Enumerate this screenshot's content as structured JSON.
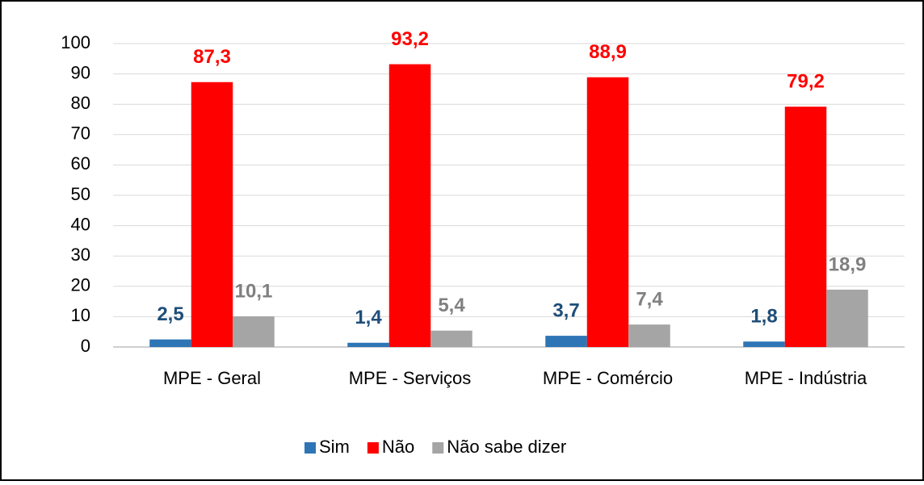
{
  "chart_data": {
    "type": "bar",
    "categories": [
      "MPE - Geral",
      "MPE - Serviços",
      "MPE - Comércio",
      "MPE - Indústria"
    ],
    "series": [
      {
        "name": "Sim",
        "color": "#2e75b6",
        "label_color": "#1f4e79",
        "values": [
          2.5,
          1.4,
          3.7,
          1.8
        ],
        "value_labels": [
          "2,5",
          "1,4",
          "3,7",
          "1,8"
        ]
      },
      {
        "name": "Não",
        "color": "#ff0000",
        "label_color": "#ff0000",
        "values": [
          87.3,
          93.2,
          88.9,
          79.2
        ],
        "value_labels": [
          "87,3",
          "93,2",
          "88,9",
          "79,2"
        ]
      },
      {
        "name": "Não sabe dizer",
        "color": "#a5a5a5",
        "label_color": "#808080",
        "values": [
          10.1,
          5.4,
          7.4,
          18.9
        ],
        "value_labels": [
          "10,1",
          "5,4",
          "7,4",
          "18,9"
        ]
      }
    ],
    "ylim": [
      0,
      100
    ],
    "yticks": [
      0,
      10,
      20,
      30,
      40,
      50,
      60,
      70,
      80,
      90,
      100
    ],
    "grid": true,
    "legend": "bottom"
  }
}
